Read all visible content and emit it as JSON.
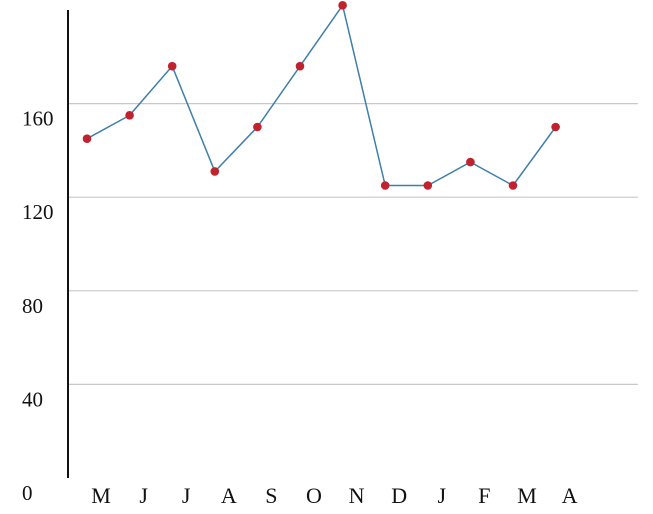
{
  "chart_data": {
    "type": "line",
    "title": "",
    "xlabel": "",
    "ylabel": "",
    "categories": [
      "M",
      "J",
      "J",
      "A",
      "S",
      "O",
      "N",
      "D",
      "J",
      "F",
      "M",
      "A"
    ],
    "series": [
      {
        "values": [
          145,
          155,
          176,
          131,
          150,
          176,
          202,
          125,
          125,
          135,
          125,
          150
        ]
      }
    ],
    "ylim": [
      0,
      200
    ],
    "yticks": [
      0,
      40,
      80,
      120,
      160
    ],
    "grid": true,
    "legend": "none",
    "colors": {
      "line": "#3f7fa8",
      "marker": "#c0222e",
      "grid": "#c8c8c8",
      "axis": "#111111"
    }
  }
}
